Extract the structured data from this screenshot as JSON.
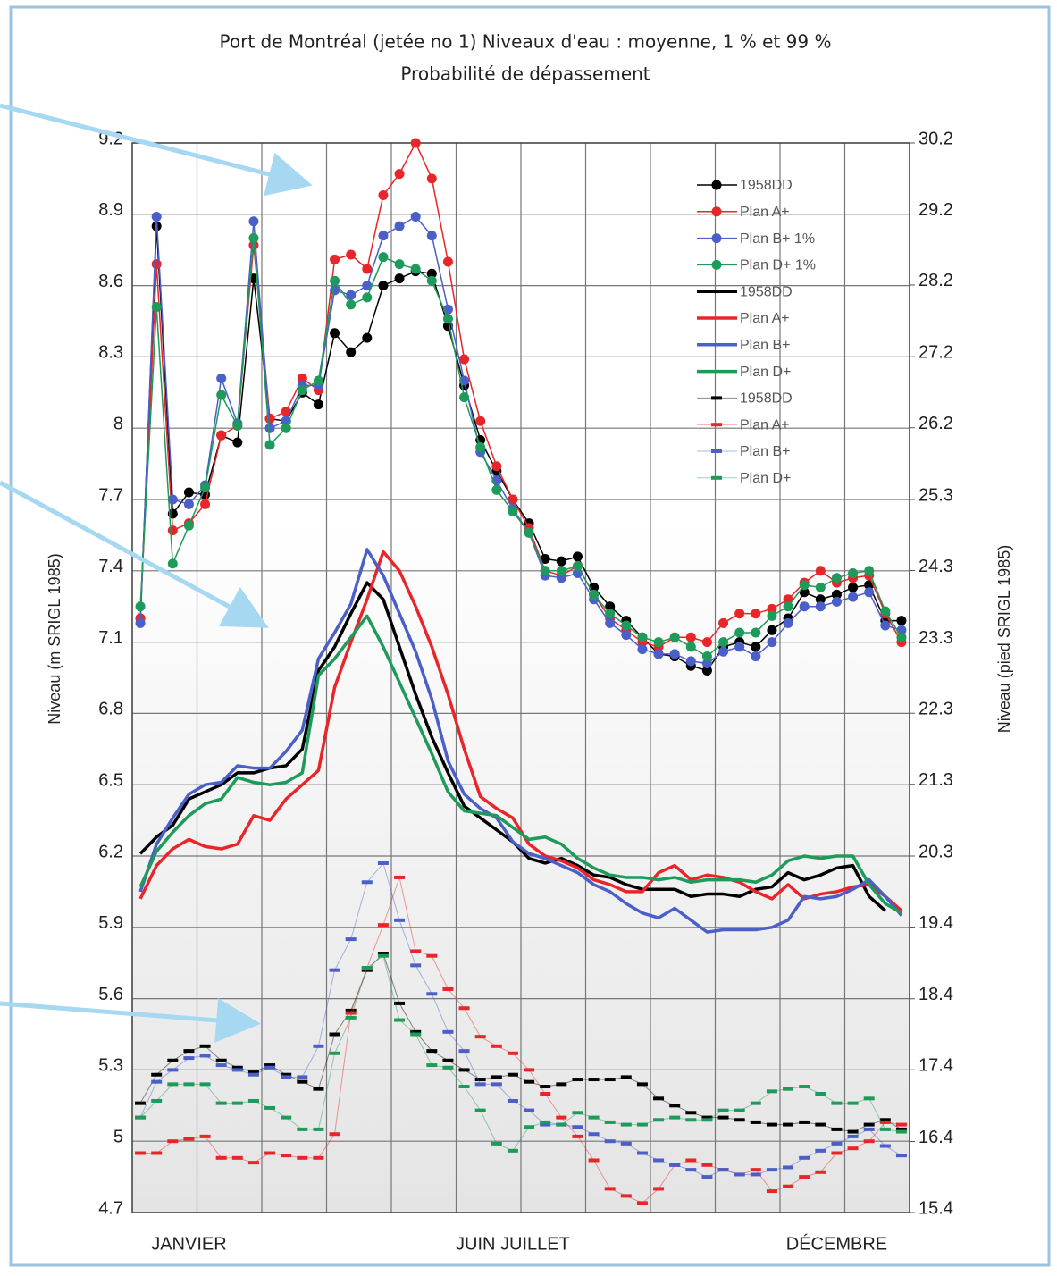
{
  "chart_data": {
    "type": "line",
    "title": "Port de Montréal (jetée no 1) Niveaux d'eau : moyenne, 1 % et 99 %",
    "subtitle": "Probabilité de dépassement",
    "ylabel": "Niveau (m SRIGL 1985)",
    "y2label": "Niveau (pied SRIGL 1985)",
    "categories": [
      null,
      null,
      null,
      "JANVIER",
      null,
      null,
      null,
      null,
      null,
      null,
      null,
      null,
      null,
      null,
      null,
      null,
      null,
      null,
      null,
      null,
      null,
      null,
      null,
      "JUIN JUILLET",
      null,
      null,
      null,
      null,
      null,
      null,
      null,
      null,
      null,
      null,
      null,
      null,
      null,
      null,
      null,
      null,
      null,
      null,
      null,
      "DÉCEMBRE",
      null,
      null,
      null,
      null
    ],
    "ylim": [
      4.7,
      9.2
    ],
    "yticks": [
      4.7,
      5.0,
      5.3,
      5.6,
      5.9,
      6.2,
      6.5,
      6.8,
      7.1,
      7.4,
      7.7,
      8.0,
      8.3,
      8.6,
      8.9,
      9.2
    ],
    "y2lim": [
      15.42,
      30.18
    ],
    "y2ticks": [
      {
        "value": 15.42,
        "label": "15.4"
      },
      {
        "value": 16.4,
        "label": "16.4"
      },
      {
        "value": 17.39,
        "label": "17.4"
      },
      {
        "value": 18.37,
        "label": "18.4"
      },
      {
        "value": 19.36,
        "label": "19.4"
      },
      {
        "value": 20.34,
        "label": "20.3"
      },
      {
        "value": 21.33,
        "label": "21.3"
      },
      {
        "value": 22.31,
        "label": "22.3"
      },
      {
        "value": 23.29,
        "label": "23.3"
      },
      {
        "value": 24.28,
        "label": "24.3"
      },
      {
        "value": 25.26,
        "label": "25.3"
      },
      {
        "value": 26.25,
        "label": "26.2"
      },
      {
        "value": 27.23,
        "label": "27.2"
      },
      {
        "value": 28.22,
        "label": "28.2"
      },
      {
        "value": 29.2,
        "label": "29.2"
      },
      {
        "value": 30.18,
        "label": "30.2"
      }
    ],
    "grid": true,
    "legend": "upper-right",
    "series": [
      {
        "name": "1958DD",
        "color": "#000000",
        "style": "marker-line",
        "values": [
          7.2,
          8.85,
          7.64,
          7.73,
          7.72,
          7.97,
          7.94,
          8.63,
          8.04,
          8.03,
          8.15,
          8.1,
          8.4,
          8.32,
          8.38,
          8.6,
          8.63,
          8.66,
          8.65,
          8.43,
          8.18,
          7.95,
          7.82,
          7.7,
          7.6,
          7.45,
          7.44,
          7.46,
          7.33,
          7.25,
          7.19,
          7.12,
          7.05,
          7.04,
          7.0,
          6.98,
          7.08,
          7.1,
          7.08,
          7.15,
          7.2,
          7.31,
          7.28,
          7.3,
          7.33,
          7.34,
          7.19,
          7.19
        ]
      },
      {
        "name": "Plan A+",
        "color": "#e8262a",
        "style": "marker-line",
        "values": [
          7.2,
          8.69,
          7.57,
          7.6,
          7.68,
          7.97,
          8.01,
          8.77,
          8.04,
          8.07,
          8.21,
          8.16,
          8.71,
          8.73,
          8.67,
          8.98,
          9.07,
          9.2,
          9.05,
          8.7,
          8.29,
          8.03,
          7.84,
          7.7,
          7.58,
          7.4,
          7.38,
          7.42,
          7.3,
          7.2,
          7.15,
          7.1,
          7.08,
          7.12,
          7.12,
          7.1,
          7.18,
          7.22,
          7.22,
          7.24,
          7.28,
          7.35,
          7.4,
          7.35,
          7.37,
          7.38,
          7.22,
          7.1
        ]
      },
      {
        "name": "Plan B+ 1%",
        "color": "#4a5fc8",
        "style": "marker-line",
        "values": [
          7.18,
          8.89,
          7.7,
          7.68,
          7.76,
          8.21,
          8.02,
          8.87,
          8.0,
          8.03,
          8.18,
          8.18,
          8.58,
          8.56,
          8.6,
          8.81,
          8.85,
          8.89,
          8.81,
          8.5,
          8.2,
          7.9,
          7.78,
          7.66,
          7.56,
          7.38,
          7.37,
          7.39,
          7.28,
          7.18,
          7.13,
          7.07,
          7.05,
          7.05,
          7.02,
          7.01,
          7.06,
          7.08,
          7.04,
          7.1,
          7.18,
          7.25,
          7.25,
          7.27,
          7.29,
          7.31,
          7.17,
          7.15
        ]
      },
      {
        "name": "Plan D+ 1%",
        "color": "#1e9a5a",
        "style": "marker-line",
        "values": [
          7.25,
          8.51,
          7.43,
          7.59,
          7.75,
          8.14,
          8.01,
          8.8,
          7.93,
          8.0,
          8.16,
          8.2,
          8.62,
          8.52,
          8.55,
          8.72,
          8.69,
          8.67,
          8.62,
          8.46,
          8.13,
          7.92,
          7.74,
          7.65,
          7.56,
          7.4,
          7.4,
          7.42,
          7.3,
          7.22,
          7.17,
          7.12,
          7.1,
          7.12,
          7.08,
          7.04,
          7.1,
          7.14,
          7.14,
          7.21,
          7.25,
          7.34,
          7.33,
          7.37,
          7.39,
          7.4,
          7.23,
          7.12
        ]
      },
      {
        "name": "1958DD",
        "color": "#000000",
        "style": "thick-line",
        "values": [
          6.21,
          6.28,
          6.33,
          6.44,
          6.47,
          6.5,
          6.55,
          6.55,
          6.57,
          6.58,
          6.65,
          6.98,
          7.08,
          7.22,
          7.35,
          7.28,
          7.08,
          6.88,
          6.7,
          6.55,
          6.41,
          6.36,
          6.31,
          6.26,
          6.19,
          6.17,
          6.19,
          6.16,
          6.12,
          6.11,
          6.08,
          6.06,
          6.06,
          6.06,
          6.03,
          6.04,
          6.04,
          6.03,
          6.06,
          6.07,
          6.13,
          6.1,
          6.12,
          6.15,
          6.16,
          6.03,
          5.97,
          null
        ]
      },
      {
        "name": "Plan A+",
        "color": "#e8262a",
        "style": "thick-line",
        "values": [
          6.02,
          6.16,
          6.23,
          6.27,
          6.24,
          6.23,
          6.25,
          6.37,
          6.35,
          6.44,
          6.5,
          6.56,
          6.91,
          7.1,
          7.28,
          7.48,
          7.4,
          7.25,
          7.08,
          6.88,
          6.65,
          6.45,
          6.4,
          6.36,
          6.25,
          6.2,
          6.18,
          6.15,
          6.1,
          6.08,
          6.05,
          6.05,
          6.13,
          6.16,
          6.1,
          6.12,
          6.11,
          6.09,
          6.05,
          6.02,
          6.08,
          6.02,
          6.04,
          6.05,
          6.07,
          6.08,
          6.03,
          5.97
        ]
      },
      {
        "name": "Plan B+",
        "color": "#4a5fc8",
        "style": "thick-line",
        "values": [
          6.05,
          6.25,
          6.36,
          6.46,
          6.5,
          6.51,
          6.58,
          6.57,
          6.57,
          6.64,
          6.73,
          7.03,
          7.14,
          7.26,
          7.49,
          7.38,
          7.22,
          7.06,
          6.86,
          6.6,
          6.46,
          6.4,
          6.36,
          6.26,
          6.21,
          6.19,
          6.16,
          6.13,
          6.08,
          6.05,
          6.0,
          5.96,
          5.94,
          5.98,
          5.93,
          5.88,
          5.89,
          5.89,
          5.89,
          5.9,
          5.93,
          6.03,
          6.02,
          6.03,
          6.06,
          6.1,
          6.03,
          5.95
        ]
      },
      {
        "name": "Plan D+",
        "color": "#1e9a5a",
        "style": "thick-line",
        "values": [
          6.07,
          6.22,
          6.3,
          6.37,
          6.42,
          6.44,
          6.53,
          6.51,
          6.5,
          6.51,
          6.55,
          6.96,
          7.03,
          7.12,
          7.21,
          7.08,
          6.93,
          6.78,
          6.63,
          6.47,
          6.39,
          6.38,
          6.37,
          6.32,
          6.27,
          6.28,
          6.25,
          6.19,
          6.15,
          6.12,
          6.11,
          6.11,
          6.1,
          6.11,
          6.09,
          6.1,
          6.1,
          6.1,
          6.09,
          6.12,
          6.18,
          6.2,
          6.19,
          6.2,
          6.2,
          6.08,
          6.0,
          5.96
        ]
      },
      {
        "name": "1958DD",
        "color": "#000000",
        "style": "steps",
        "values": [
          5.16,
          5.28,
          5.34,
          5.38,
          5.4,
          5.34,
          5.31,
          5.29,
          5.32,
          5.28,
          5.25,
          5.22,
          5.45,
          5.55,
          5.72,
          5.79,
          5.58,
          5.46,
          5.38,
          5.34,
          5.3,
          5.26,
          5.27,
          5.28,
          5.25,
          5.23,
          5.24,
          5.26,
          5.26,
          5.26,
          5.27,
          5.24,
          5.18,
          5.15,
          5.12,
          5.1,
          5.1,
          5.09,
          5.08,
          5.07,
          5.07,
          5.08,
          5.07,
          5.05,
          5.04,
          5.07,
          5.09,
          5.05
        ]
      },
      {
        "name": "Plan A+",
        "color": "#e8262a",
        "style": "steps",
        "values": [
          4.95,
          4.95,
          5.0,
          5.01,
          5.02,
          4.93,
          4.93,
          4.91,
          4.95,
          4.94,
          4.93,
          4.93,
          5.03,
          5.54,
          5.73,
          5.91,
          6.11,
          5.8,
          5.78,
          5.64,
          5.56,
          5.44,
          5.4,
          5.37,
          5.3,
          5.2,
          5.1,
          5.02,
          4.92,
          4.8,
          4.77,
          4.74,
          4.8,
          4.9,
          4.92,
          4.9,
          4.88,
          4.86,
          4.88,
          4.79,
          4.81,
          4.85,
          4.87,
          4.95,
          4.97,
          5.0,
          5.08,
          5.07
        ]
      },
      {
        "name": "Plan B+",
        "color": "#4a5fc8",
        "style": "steps",
        "values": [
          5.1,
          5.25,
          5.3,
          5.35,
          5.36,
          5.32,
          5.3,
          5.28,
          5.31,
          5.27,
          5.27,
          5.4,
          5.72,
          5.85,
          6.09,
          6.17,
          5.93,
          5.74,
          5.62,
          5.46,
          5.38,
          5.24,
          5.24,
          5.17,
          5.13,
          5.07,
          5.07,
          5.06,
          5.03,
          5.0,
          4.99,
          4.95,
          4.92,
          4.9,
          4.88,
          4.85,
          4.88,
          4.86,
          4.86,
          4.88,
          4.89,
          4.93,
          4.96,
          4.99,
          5.02,
          5.05,
          4.98,
          4.94
        ]
      },
      {
        "name": "Plan D+",
        "color": "#1e9a5a",
        "style": "steps",
        "values": [
          5.1,
          5.17,
          5.24,
          5.24,
          5.24,
          5.16,
          5.16,
          5.17,
          5.14,
          5.1,
          5.05,
          5.05,
          5.37,
          5.52,
          5.73,
          5.78,
          5.51,
          5.45,
          5.32,
          5.31,
          5.23,
          5.13,
          4.99,
          4.96,
          5.06,
          5.08,
          5.07,
          5.12,
          5.1,
          5.08,
          5.07,
          5.07,
          5.09,
          5.1,
          5.09,
          5.09,
          5.13,
          5.13,
          5.16,
          5.21,
          5.22,
          5.23,
          5.2,
          5.16,
          5.16,
          5.18,
          5.05,
          5.04
        ]
      }
    ]
  }
}
